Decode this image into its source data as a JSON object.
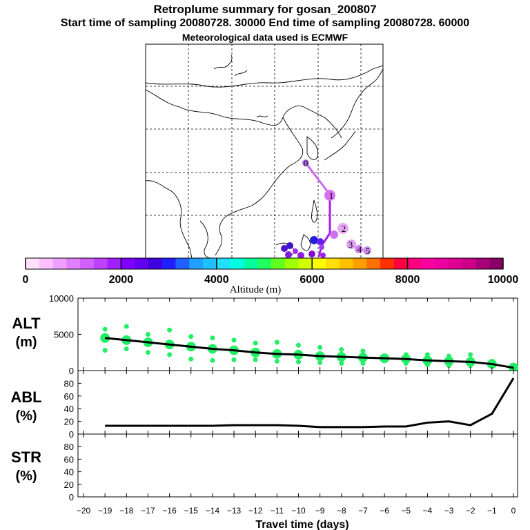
{
  "header": {
    "title": "Retroplume summary for gosan_200807",
    "sampling": "Start time of sampling 20080728. 30000     End time of sampling 20080728. 60000",
    "meteo": "Meteorological data used is ECMWF"
  },
  "colors": {
    "plume_line": "#cc66ee",
    "alt_points": "#22ee66",
    "trace_line": "#000000"
  },
  "chart_data": [
    {
      "type": "map",
      "name": "retroplume-map",
      "day_markers": [
        "0",
        "1",
        "2",
        "3",
        "4",
        "5"
      ],
      "colorbar": {
        "title": "Altitude (m)",
        "ticks": [
          0,
          2000,
          4000,
          6000,
          8000,
          10000
        ],
        "tick_labels": [
          "0",
          "2000",
          "4000",
          "6000",
          "8000",
          "10000"
        ],
        "colors": [
          "#ffe0ff",
          "#ffc0ff",
          "#f0a0ff",
          "#e080ff",
          "#d060ff",
          "#c040ff",
          "#a020ff",
          "#8000ff",
          "#6000ee",
          "#4000dd",
          "#2020ff",
          "#2060ff",
          "#20a0ff",
          "#20c0ff",
          "#20e0ff",
          "#00ffe0",
          "#00ffa0",
          "#20ff60",
          "#60ff20",
          "#a0ff00",
          "#d0ff00",
          "#ffff00",
          "#ffe000",
          "#ffc000",
          "#ffa000",
          "#ff7000",
          "#ff3000",
          "#ff0040",
          "#ff0080",
          "#ff00a0",
          "#ee00a0",
          "#dd0090",
          "#cc0088",
          "#aa0077",
          "#880066"
        ]
      }
    },
    {
      "type": "scatter+line",
      "name": "altitude-panel",
      "ylabel": "ALT",
      "yunit": "(m)",
      "ylim": [
        0,
        10000
      ],
      "yticks": [
        0,
        5000,
        10000
      ],
      "ytick_labels": [
        "0",
        "5000",
        "10000"
      ],
      "x": [
        -19,
        -18,
        -17,
        -16,
        -15,
        -14,
        -13,
        -12,
        -11,
        -10,
        -9,
        -8,
        -7,
        -6,
        -5,
        -4,
        -3,
        -2,
        -1,
        0
      ],
      "mean_altitude": [
        4500,
        4200,
        3900,
        3600,
        3300,
        3000,
        2800,
        2500,
        2300,
        2200,
        2000,
        1900,
        1800,
        1700,
        1600,
        1400,
        1300,
        1200,
        900,
        400
      ],
      "points": {
        "upper": [
          5700,
          6100,
          5000,
          5600,
          4700,
          4500,
          4200,
          3800,
          3900,
          3500,
          3200,
          2900,
          2700,
          2000,
          2200,
          2200,
          2000,
          2200,
          1300,
          400
        ],
        "lower": [
          2800,
          3000,
          2500,
          2200,
          1600,
          1400,
          1500,
          1500,
          1300,
          1200,
          1100,
          1000,
          1000,
          1500,
          1000,
          800,
          700,
          700,
          700,
          400
        ]
      }
    },
    {
      "type": "line",
      "name": "abl-panel",
      "ylabel": "ABL",
      "yunit": "(%)",
      "ylim": [
        0,
        100
      ],
      "yticks": [
        0,
        20,
        40,
        60,
        80
      ],
      "ytick_labels": [
        "0",
        "20",
        "40",
        "60",
        "80"
      ],
      "x": [
        -19,
        -18,
        -17,
        -16,
        -15,
        -14,
        -13,
        -12,
        -11,
        -10,
        -9,
        -8,
        -7,
        -6,
        -5,
        -4,
        -3,
        -2,
        -1,
        0
      ],
      "values": [
        13,
        13,
        13,
        13,
        13,
        13,
        14,
        14,
        14,
        13,
        11,
        11,
        11,
        12,
        12,
        18,
        20,
        14,
        32,
        88
      ]
    },
    {
      "type": "line",
      "name": "str-panel",
      "ylabel": "STR",
      "yunit": "(%)",
      "ylim": [
        0,
        100
      ],
      "yticks": [
        0,
        20,
        40,
        60,
        80
      ],
      "ytick_labels": [
        "0",
        "20",
        "40",
        "60",
        "80"
      ],
      "x": [],
      "values": []
    }
  ],
  "xaxis": {
    "label": "Travel time (days)",
    "xlim": [
      -20,
      0
    ],
    "ticks": [
      -20,
      -19,
      -18,
      -17,
      -16,
      -15,
      -14,
      -13,
      -12,
      -11,
      -10,
      -9,
      -8,
      -7,
      -6,
      -5,
      -4,
      -3,
      -2,
      -1,
      0
    ],
    "tick_labels": [
      "−20",
      "−19",
      "−18",
      "−17",
      "−16",
      "−15",
      "−14",
      "−13",
      "−12",
      "−11",
      "−10",
      "−9",
      "−8",
      "−7",
      "−6",
      "−5",
      "−4",
      "−3",
      "−2",
      "−1",
      "0"
    ]
  }
}
